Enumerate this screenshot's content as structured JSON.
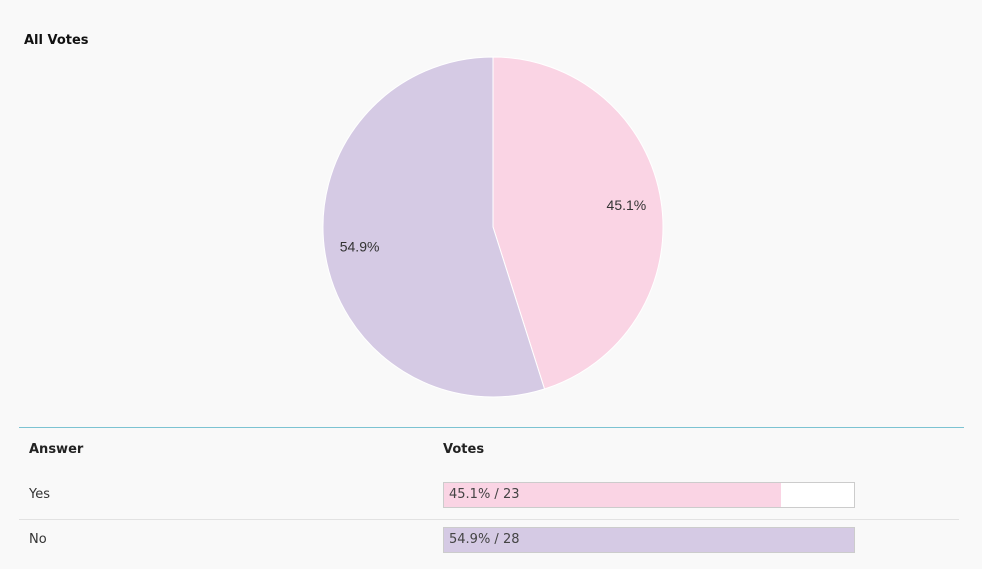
{
  "chart_data": {
    "type": "pie",
    "title": "All Votes",
    "values": [
      45.1,
      54.9
    ],
    "value_labels": [
      "45.1%",
      "54.9%"
    ],
    "colors": [
      "#fad4e4",
      "#d5cae4"
    ]
  },
  "table": {
    "headers": [
      "Answer",
      "Votes"
    ],
    "rows": [
      {
        "answer": "Yes",
        "percent": 45.1,
        "votes": 23,
        "label": "45.1% / 23"
      },
      {
        "answer": "No",
        "percent": 54.9,
        "votes": 28,
        "label": "54.9% / 28"
      }
    ]
  }
}
